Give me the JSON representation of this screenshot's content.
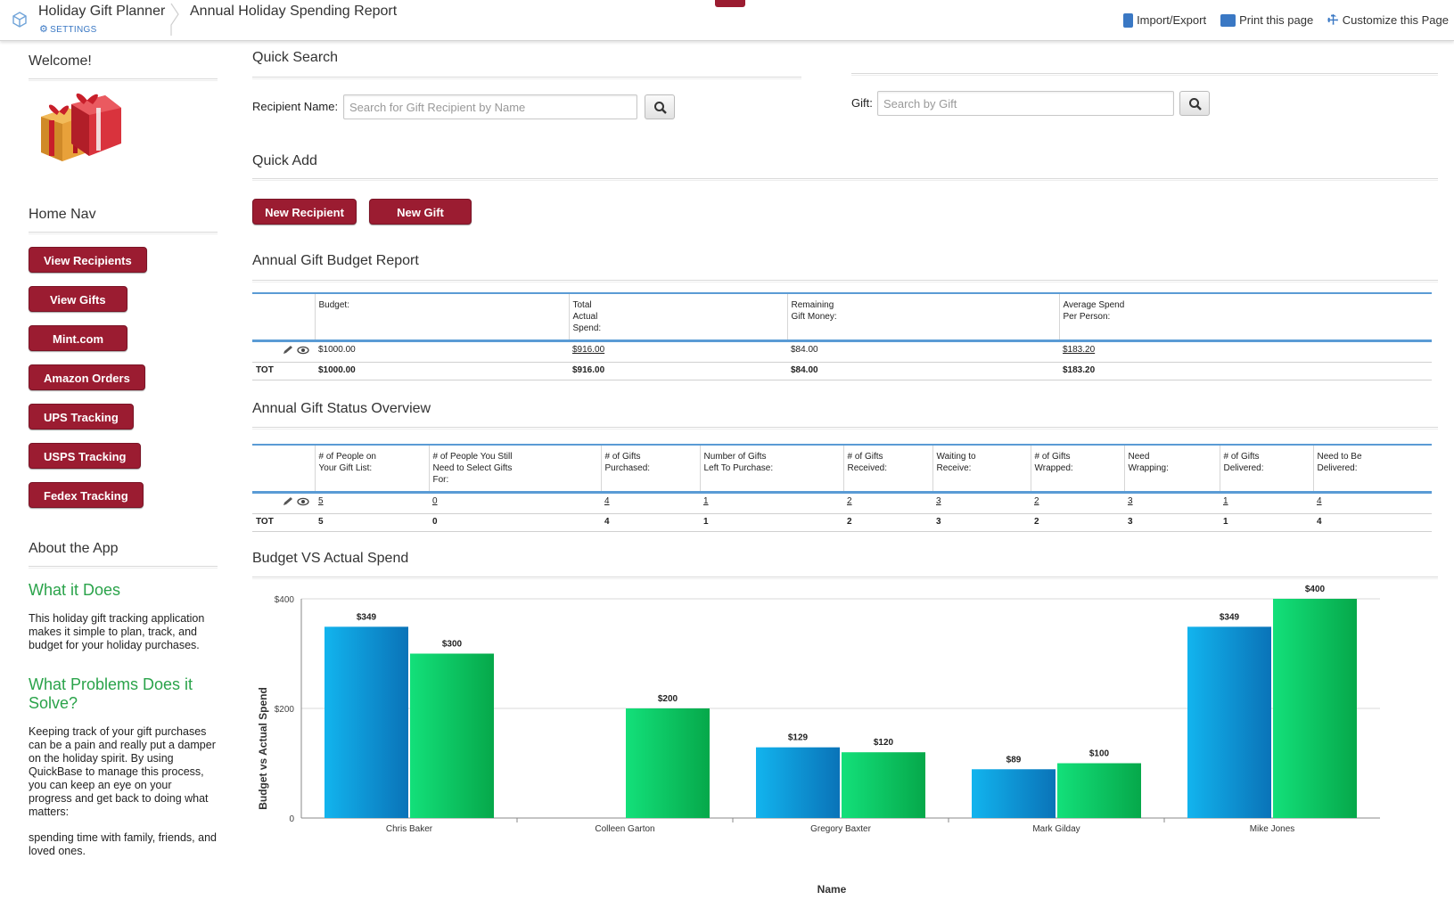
{
  "header": {
    "app_title": "Holiday Gift Planner",
    "settings_label": "SETTINGS",
    "report_title": "Annual Holiday Spending Report",
    "actions": {
      "import_export": "Import/Export",
      "print": "Print this page",
      "customize": "Customize this Page"
    }
  },
  "sidebar": {
    "welcome": "Welcome!",
    "home_nav": "Home Nav",
    "nav_items": [
      {
        "label": "View Recipients"
      },
      {
        "label": "View Gifts"
      },
      {
        "label": "Mint.com"
      },
      {
        "label": "Amazon Orders"
      },
      {
        "label": "UPS Tracking"
      },
      {
        "label": "USPS Tracking"
      },
      {
        "label": "Fedex Tracking"
      }
    ],
    "about_title": "About the App",
    "what_it_does_title": "What it Does",
    "what_it_does_text": "This holiday gift tracking application makes it simple to plan, track, and budget for your holiday purchases.",
    "problems_title": "What Problems Does it Solve?",
    "problems_text_1": "Keeping track of your gift purchases can be a pain and really put a damper on the holiday spirit. By using QuickBase to manage this process, you can keep an eye on your progress and get back to doing what matters:",
    "problems_text_2": "spending time with family, friends, and loved ones."
  },
  "quick_search": {
    "title": "Quick Search",
    "recipient_label": "Recipient Name:",
    "recipient_placeholder": "Search for Gift Recipient by Name",
    "gift_label": "Gift:",
    "gift_placeholder": "Search by Gift"
  },
  "quick_add": {
    "title": "Quick Add",
    "new_recipient": "New Recipient",
    "new_gift": "New Gift"
  },
  "budget_report": {
    "title": "Annual Gift Budget Report",
    "headers": [
      "Budget:",
      "Total Actual Spend:",
      "Remaining Gift Money:",
      "Average Spend Per Person:"
    ],
    "row": [
      "$1000.00",
      "$916.00",
      "$84.00",
      "$183.20"
    ],
    "tot_label": "TOT",
    "tot": [
      "$1000.00",
      "$916.00",
      "$84.00",
      "$183.20"
    ]
  },
  "status_overview": {
    "title": "Annual Gift Status Overview",
    "headers": [
      "# of People on Your Gift List:",
      "# of People You Still Need to Select Gifts For:",
      "# of Gifts Purchased:",
      "Number of Gifts Left To Purchase:",
      "# of Gifts Received:",
      "Waiting to Receive:",
      "# of Gifts Wrapped:",
      "Need Wrapping:",
      "# of Gifts Delivered:",
      "Need to Be Delivered:"
    ],
    "row": [
      "5",
      "0",
      "4",
      "1",
      "2",
      "3",
      "2",
      "3",
      "1",
      "4"
    ],
    "tot_label": "TOT",
    "tot": [
      "5",
      "0",
      "4",
      "1",
      "2",
      "3",
      "2",
      "3",
      "1",
      "4"
    ]
  },
  "chart_section": {
    "title": "Budget VS Actual Spend"
  },
  "chart_data": {
    "type": "bar",
    "categories": [
      "Chris Baker",
      "Colleen Garton",
      "Gregory Baxter",
      "Mark Gilday",
      "Mike Jones"
    ],
    "series": [
      {
        "values": [
          349,
          null,
          129,
          89,
          349
        ],
        "color": "#0e9ad6"
      },
      {
        "values": [
          300,
          200,
          120,
          100,
          400
        ],
        "color": "#0ab957"
      }
    ],
    "data_labels": [
      [
        "$349",
        "",
        "$129",
        "$89",
        "$349"
      ],
      [
        "$300",
        "$200",
        "$120",
        "$100",
        "$400"
      ]
    ],
    "y_ticks": [
      0,
      200,
      400
    ],
    "y_tick_labels": [
      "0",
      "$200",
      "$400"
    ],
    "ylim": [
      0,
      400
    ],
    "xlabel": "Name",
    "ylabel": "Budget vs Actual Spend",
    "grid": true
  },
  "colors": {
    "brand_button": "#9b1c31",
    "accent_blue": "#3a78c4",
    "section_green": "#2aa34a",
    "table_rule": "#5a9bd5"
  }
}
